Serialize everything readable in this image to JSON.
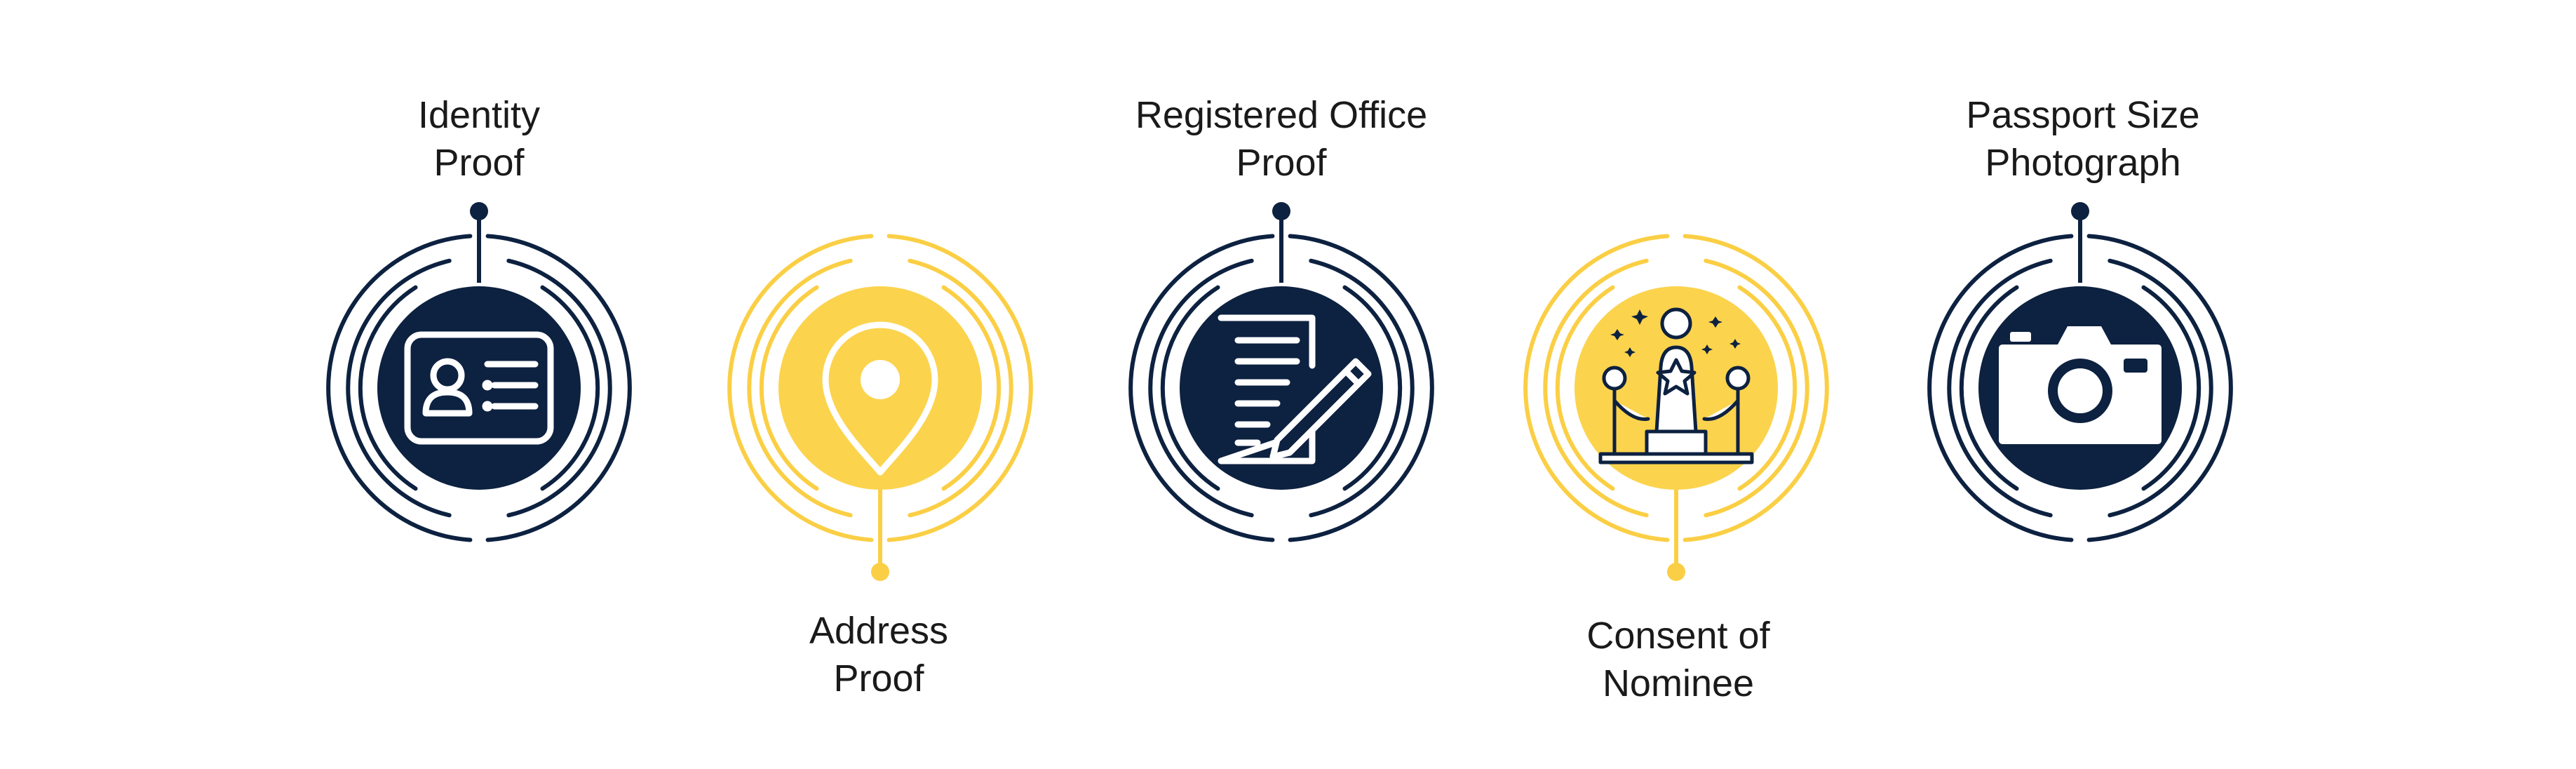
{
  "colors": {
    "navy": "#0d2140",
    "yellow": "#fcd34d",
    "line_yellow": "#fbcf45",
    "background": "#ffffff"
  },
  "steps": [
    {
      "line1": "Identity",
      "line2": "Proof",
      "icon": "id-card-icon",
      "theme": "navy"
    },
    {
      "line1": "Address",
      "line2": "Proof",
      "icon": "location-pin-icon",
      "theme": "yellow"
    },
    {
      "line1": "Registered Office",
      "line2": "Proof",
      "icon": "document-pen-icon",
      "theme": "navy"
    },
    {
      "line1": "Consent of",
      "line2": "Nominee",
      "icon": "award-statue-icon",
      "theme": "yellow"
    },
    {
      "line1": "Passport Size",
      "line2": "Photograph",
      "icon": "camera-icon",
      "theme": "navy"
    }
  ]
}
